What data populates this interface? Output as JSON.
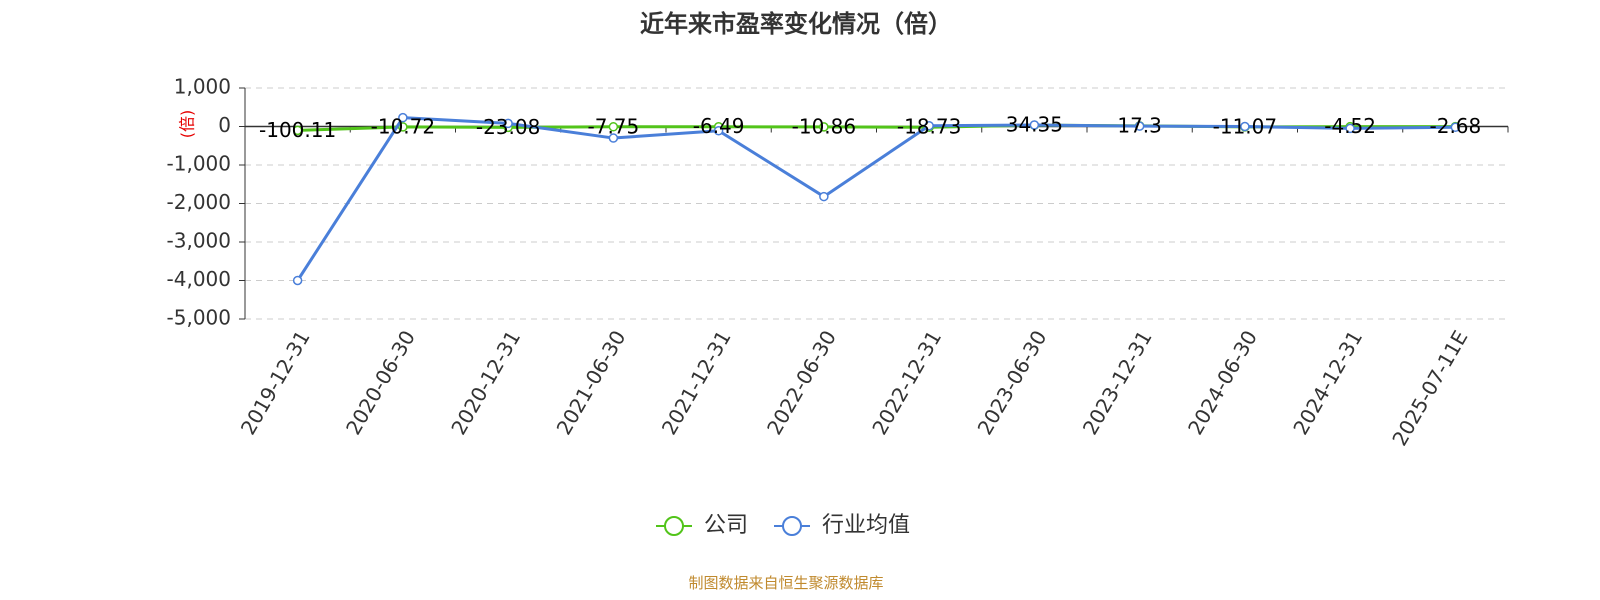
{
  "chart_data": {
    "type": "line",
    "title": "近年来市盈率变化情况（倍）",
    "ylabel": "(倍)",
    "categories": [
      "2019-12-31",
      "2020-06-30",
      "2020-12-31",
      "2021-06-30",
      "2021-12-31",
      "2022-06-30",
      "2022-12-31",
      "2023-06-30",
      "2023-12-31",
      "2024-06-30",
      "2024-12-31",
      "2025-07-11E"
    ],
    "ylim": [
      -5000,
      1000
    ],
    "yticks": [
      1000,
      0,
      -1000,
      -2000,
      -3000,
      -4000,
      -5000
    ],
    "ytick_labels": [
      "1,000",
      "0",
      "-1,000",
      "-2,000",
      "-3,000",
      "-4,000",
      "-5,000"
    ],
    "grid": true,
    "legend_position": "bottom",
    "series": [
      {
        "name": "公司",
        "color": "#52c41a",
        "values": [
          -100.11,
          -10.72,
          -23.08,
          -7.75,
          -6.49,
          -10.86,
          -18.73,
          34.35,
          17.3,
          -11.07,
          -4.52,
          -2.68
        ],
        "labels": [
          "-100.11",
          "-10.72",
          "-23.08",
          "-7.75",
          "-6.49",
          "-10.86",
          "-18.73",
          "34.35",
          "17.3",
          "-11.07",
          "-4.52",
          "-2.68"
        ]
      },
      {
        "name": "行业均值",
        "color": "#4a7fd9",
        "values": [
          -4000,
          230,
          80,
          -300,
          -110,
          -1820,
          20,
          40,
          10,
          0,
          -50,
          -20
        ]
      }
    ]
  },
  "footer": {
    "source": "制图数据来自恒生聚源数据库"
  }
}
